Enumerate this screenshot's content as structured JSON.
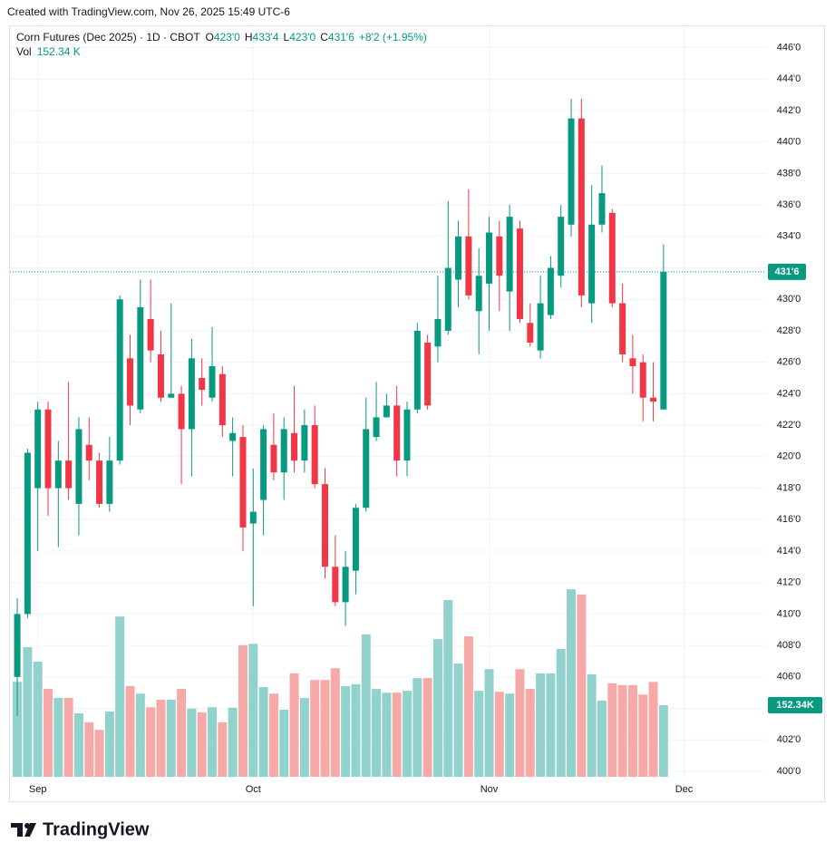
{
  "header": {
    "credit": "Created with TradingView.com, Nov 26, 2025 15:49 UTC-6",
    "brand": "TradingView"
  },
  "chart_data": {
    "type": "candlestick",
    "title": "Corn Futures (Dec 2025) · 1D · CBOT",
    "ohlc_legend": [
      {
        "key": "O",
        "label": "423'0"
      },
      {
        "key": "H",
        "label": "433'4"
      },
      {
        "key": "L",
        "label": "423'0"
      },
      {
        "key": "C",
        "label": "431'6"
      }
    ],
    "change": "+8'2 (+1.95%)",
    "volume_name": "Vol",
    "volume_legend": {
      "value": 152.34,
      "label": "152.34 K"
    },
    "volume_badge": {
      "value": 152.34,
      "label": "152.34K"
    },
    "price_badge": {
      "value": 431.75,
      "label": "431'6"
    },
    "up_color": "#089981",
    "down_color": "#f23645",
    "volume_up_color": "#92d2cc",
    "volume_down_color": "#f7a9a7",
    "grid": true,
    "xlim": [
      -0.8,
      73
    ],
    "xticks": [
      {
        "value": 2,
        "label": "Sep"
      },
      {
        "value": 23,
        "label": "Oct"
      },
      {
        "value": 46,
        "label": "Nov"
      },
      {
        "value": 65,
        "label": "Dec"
      }
    ],
    "ylim": [
      399.65,
      447.3
    ],
    "yticks": [
      {
        "value": 400,
        "label": "400'0"
      },
      {
        "value": 402,
        "label": "402'0"
      },
      {
        "value": 404,
        "label": "404'0"
      },
      {
        "value": 406,
        "label": "406'0"
      },
      {
        "value": 408,
        "label": "408'0"
      },
      {
        "value": 410,
        "label": "410'0"
      },
      {
        "value": 412,
        "label": "412'0"
      },
      {
        "value": 414,
        "label": "414'0"
      },
      {
        "value": 416,
        "label": "416'0"
      },
      {
        "value": 418,
        "label": "418'0"
      },
      {
        "value": 420,
        "label": "420'0"
      },
      {
        "value": 422,
        "label": "422'0"
      },
      {
        "value": 424,
        "label": "424'0"
      },
      {
        "value": 426,
        "label": "426'0"
      },
      {
        "value": 428,
        "label": "428'0"
      },
      {
        "value": 430,
        "label": "430'0"
      },
      {
        "value": 432,
        "label": "432'0"
      },
      {
        "value": 434,
        "label": "434'0"
      },
      {
        "value": 436,
        "label": "436'0"
      },
      {
        "value": 438,
        "label": "438'0"
      },
      {
        "value": 440,
        "label": "440'0"
      },
      {
        "value": 442,
        "label": "442'0"
      },
      {
        "value": 444,
        "label": "444'0"
      },
      {
        "value": 446,
        "label": "446'0"
      }
    ],
    "y2lim": [
      0,
      1595
    ],
    "open": [
      406,
      410,
      418,
      423,
      418,
      419.75,
      417,
      420.75,
      419.75,
      417,
      419.75,
      426.25,
      423,
      428.75,
      426.5,
      423.75,
      424,
      421.75,
      425,
      423.75,
      425.25,
      421,
      421.25,
      415.75,
      417.25,
      420.75,
      419,
      421.5,
      419.75,
      422,
      418.25,
      413,
      410.75,
      412.75,
      416.75,
      421.25,
      422.5,
      423.25,
      419.75,
      423,
      427.25,
      427,
      428,
      431.25,
      434,
      429.25,
      431,
      434,
      430.5,
      434.5,
      428.5,
      426.75,
      429,
      431.5,
      434.75,
      441.5,
      429.75,
      434.75,
      435.5,
      429.75,
      426.25,
      426,
      423.75,
      423
    ],
    "high": [
      411,
      420.5,
      423.5,
      423.5,
      421,
      424.75,
      422.5,
      422.5,
      420.25,
      421.25,
      430.25,
      427.75,
      431.25,
      431.25,
      428,
      429.75,
      424.5,
      427.5,
      426.25,
      428.25,
      425.75,
      422.5,
      422,
      419.25,
      422,
      422.75,
      422.5,
      424.5,
      423,
      423.25,
      419.25,
      415,
      414,
      417,
      423.75,
      424.75,
      424,
      424.5,
      423.5,
      428.5,
      427.75,
      431.5,
      436.25,
      435,
      437,
      433.25,
      435.25,
      435,
      436,
      435,
      429.75,
      431.5,
      432.75,
      436,
      442.75,
      442.75,
      437.25,
      438.5,
      435.75,
      431,
      427.75,
      426.5,
      426,
      433.5
    ],
    "low": [
      403.5,
      409.75,
      414,
      416.25,
      414.25,
      417.25,
      415,
      418.5,
      416.75,
      416.5,
      419.5,
      422,
      422.75,
      426,
      423.5,
      423.75,
      418.25,
      418.75,
      423.25,
      423.5,
      421.25,
      418.75,
      414,
      410.5,
      415,
      418.5,
      417.25,
      419,
      419,
      418,
      412.25,
      410.5,
      409.25,
      411.25,
      416.5,
      421,
      422.5,
      418.75,
      418.75,
      422.75,
      423,
      426,
      427.75,
      429.5,
      430,
      426.5,
      428,
      429.25,
      428,
      428.5,
      427,
      426.25,
      428.75,
      430.75,
      434,
      429.5,
      428.5,
      434.25,
      429.5,
      426,
      424,
      422.25,
      422.25,
      423
    ],
    "close": [
      410,
      420.25,
      423,
      418,
      419.75,
      418,
      421.75,
      419.75,
      417,
      419.75,
      430,
      423.25,
      429.5,
      426.75,
      423.75,
      424,
      421.75,
      426.25,
      424.25,
      425.75,
      422,
      421.5,
      415.5,
      416.5,
      421.75,
      419,
      421.75,
      419.75,
      422,
      418.25,
      413,
      410.75,
      413,
      416.75,
      421.75,
      422.5,
      423.25,
      419.75,
      423,
      428,
      423.25,
      428.75,
      432,
      434,
      430.25,
      431.5,
      434.25,
      431.5,
      435.25,
      428.75,
      427.25,
      429.75,
      432,
      435.25,
      441.5,
      430.25,
      434.75,
      436.75,
      429.75,
      426.5,
      425.75,
      423.75,
      423.5,
      431.75
    ],
    "volume": [
      202,
      276,
      245,
      187,
      168,
      168,
      135,
      116,
      100,
      139,
      341,
      193,
      177,
      148,
      164,
      164,
      187,
      145,
      137,
      148,
      116,
      147,
      280,
      283,
      191,
      177,
      143,
      220,
      168,
      206,
      206,
      231,
      193,
      197,
      303,
      187,
      179,
      179,
      183,
      210,
      210,
      293,
      376,
      241,
      299,
      183,
      229,
      181,
      177,
      229,
      187,
      220,
      220,
      272,
      399,
      388,
      218,
      162,
      199,
      195,
      195,
      175,
      202,
      152.34
    ]
  }
}
